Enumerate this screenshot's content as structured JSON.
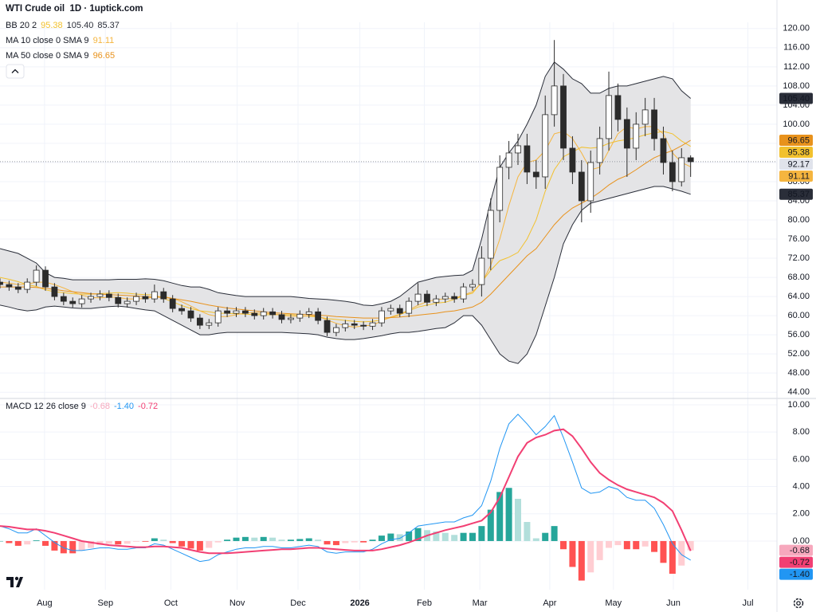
{
  "chart_data": [
    {
      "type": "candlestick",
      "title": "WTI Crude oil  1D · 1uptick.com",
      "ylim": [
        42.7,
        121.3
      ],
      "yticks": [
        {
          "value": 44,
          "label": "44.00"
        },
        {
          "value": 48,
          "label": "48.00"
        },
        {
          "value": 52,
          "label": "52.00"
        },
        {
          "value": 56,
          "label": "56.00"
        },
        {
          "value": 60,
          "label": "60.00"
        },
        {
          "value": 64,
          "label": "64.00"
        },
        {
          "value": 68,
          "label": "68.00"
        },
        {
          "value": 72,
          "label": "72.00"
        },
        {
          "value": 76,
          "label": "76.00"
        },
        {
          "value": 80,
          "label": "80.00"
        },
        {
          "value": 84,
          "label": "84.00"
        },
        {
          "value": 88,
          "label": "88.00"
        },
        {
          "value": 92,
          "label": "92.00"
        },
        {
          "value": 96,
          "label": "96.00"
        },
        {
          "value": 100,
          "label": "100.00"
        },
        {
          "value": 104,
          "label": "104.00"
        },
        {
          "value": 108,
          "label": "108.00"
        },
        {
          "value": 112,
          "label": "112.00"
        },
        {
          "value": 116,
          "label": "116.00"
        },
        {
          "value": 120,
          "label": "120.00"
        }
      ],
      "grid": true,
      "candle_colors": {
        "up": "#ffffff",
        "down": "#2b2b2b",
        "edge": "#2b2b2b"
      },
      "last_color": "#e0e3eb",
      "last_label": "92.17",
      "open": [
        67,
        66.5,
        66,
        65.5,
        67,
        69.5,
        66,
        64,
        63,
        62.5,
        63.5,
        64,
        64.5,
        63.8,
        62.5,
        63,
        64,
        63.5,
        65,
        63.5,
        61.5,
        61,
        59.5,
        58,
        58.5,
        61,
        60.5,
        61,
        60.5,
        60,
        60.8,
        60.2,
        59.2,
        59.5,
        60.3,
        60.8,
        59,
        56.5,
        57.5,
        58.3,
        58,
        57.8,
        58.5,
        61,
        61.5,
        60.5,
        63,
        64.5,
        62.8,
        63.5,
        64,
        63.5,
        66,
        66.5,
        72,
        82,
        91,
        94,
        95.5,
        90,
        89,
        102,
        108,
        95,
        90,
        84,
        92,
        97,
        106,
        101,
        95,
        100,
        103,
        97,
        92,
        88,
        93
      ],
      "high": [
        67.8,
        67.3,
        66.8,
        67.8,
        70.5,
        70.3,
        66.8,
        64.8,
        63.8,
        64.3,
        64.8,
        65.3,
        65.3,
        64.6,
        63.8,
        64.8,
        64.8,
        66.5,
        65.8,
        64.3,
        62.3,
        61.8,
        60.3,
        59.3,
        61.8,
        61.8,
        61.8,
        61.8,
        61.3,
        61.6,
        61.6,
        61,
        60.3,
        61.1,
        61.6,
        61.6,
        59.8,
        58.3,
        59.1,
        59.1,
        58.8,
        59.3,
        61.8,
        62.3,
        62.3,
        63.8,
        66.8,
        65.3,
        64.3,
        64.8,
        64.8,
        66.8,
        67.6,
        74.5,
        84.5,
        93.5,
        96.5,
        98,
        98,
        92.5,
        106,
        117.6,
        110.5,
        97.5,
        92.5,
        94.5,
        99.5,
        111,
        108.5,
        103.5,
        102.5,
        105.5,
        105.5,
        99.5,
        94.5,
        95,
        93.5
      ],
      "low": [
        65.7,
        65.2,
        64.7,
        64.7,
        66.2,
        65.2,
        63.2,
        62.2,
        61.7,
        61.7,
        62.7,
        63.2,
        63,
        61.7,
        61.7,
        62.2,
        62.7,
        62.7,
        62.7,
        60.7,
        60.2,
        58.7,
        57.2,
        57.2,
        57.7,
        59.7,
        59.7,
        59.7,
        59.2,
        59.2,
        59.4,
        58.4,
        58.4,
        58.7,
        59.5,
        58.2,
        55.7,
        55.7,
        56.7,
        57.2,
        57,
        57,
        57.7,
        60.2,
        59.7,
        59.7,
        62.2,
        62,
        62,
        62.7,
        62.7,
        62.7,
        65.2,
        64,
        69.5,
        79.5,
        88.5,
        91.5,
        87.5,
        86.5,
        86.5,
        99.5,
        92.5,
        87.5,
        79.5,
        81.5,
        89.5,
        94.5,
        98.5,
        89,
        92.5,
        97.5,
        94.5,
        89.5,
        86,
        87,
        89
      ],
      "close": [
        66.5,
        66,
        65.5,
        67,
        69.5,
        66,
        64,
        63,
        62.5,
        63.5,
        64,
        64.5,
        63.8,
        62.5,
        63,
        64,
        63.5,
        65,
        63.5,
        61.5,
        61,
        59.5,
        58,
        58.5,
        61,
        60.5,
        61,
        60.5,
        60,
        60.8,
        60.2,
        59.2,
        59.5,
        60.3,
        60.8,
        59,
        56.5,
        57.5,
        58.3,
        58,
        57.8,
        58.5,
        61,
        61.5,
        60.5,
        63,
        64.5,
        62.8,
        63.5,
        64,
        63.5,
        66,
        66.5,
        72,
        82,
        91,
        94,
        95.5,
        90,
        89,
        102,
        108,
        95,
        90,
        84,
        92,
        97,
        106,
        101,
        95,
        100,
        103,
        97,
        92,
        88,
        93,
        92.17
      ],
      "bb": {
        "label": "BB 20 2",
        "fill": "#e4e4e6",
        "basis": {
          "color": "#f2c12e",
          "last_label": "95.38",
          "values": [
            68,
            67.6,
            67.1,
            66.5,
            66.1,
            65.4,
            65,
            64.8,
            64.6,
            64.5,
            64.5,
            64.6,
            64.7,
            64.8,
            64.7,
            64.5,
            64.4,
            64.3,
            63.6,
            62.9,
            62.1,
            61.5,
            61,
            60.8,
            60.5,
            60.5,
            60.4,
            60.3,
            60.2,
            60.2,
            60.2,
            60.2,
            60.2,
            60,
            59.9,
            59.7,
            59.4,
            59.2,
            59,
            58.8,
            58.7,
            58.8,
            59.1,
            59.6,
            60.2,
            61,
            61.8,
            62.2,
            62.6,
            62.8,
            63.4,
            64.2,
            64.7,
            67,
            69.5,
            71.5,
            72.2,
            73.2,
            76,
            80,
            86,
            90.5,
            93.2,
            94.2,
            95.2,
            95,
            95.2,
            96,
            96.5,
            96.8,
            97.2,
            97.8,
            98.2,
            98.5,
            98,
            96.5,
            95.38
          ]
        },
        "upper": {
          "color": "#2a2e39",
          "last_label": "105.40",
          "values": [
            74,
            73.5,
            73,
            72,
            71,
            69,
            68,
            67.8,
            67.5,
            67.5,
            67.5,
            67.5,
            67.5,
            67.6,
            67.6,
            67.6,
            67.7,
            67.6,
            67.3,
            66.8,
            66.3,
            66,
            66,
            65.5,
            64.8,
            64.5,
            64.2,
            64,
            64,
            64,
            64,
            64,
            64,
            63.8,
            63.6,
            63.5,
            63.4,
            63.2,
            63,
            62.7,
            62.2,
            62.1,
            62.5,
            63,
            64,
            65.5,
            67,
            67.5,
            68,
            68.2,
            68.4,
            68.5,
            69.5,
            76,
            84,
            91,
            94,
            96.5,
            100,
            104,
            110,
            113,
            111.5,
            109.5,
            108.5,
            106.5,
            106.5,
            107.5,
            108,
            108,
            108.5,
            109,
            109.5,
            110,
            109.5,
            107,
            105.4
          ]
        },
        "lower": {
          "color": "#2a2e39",
          "last_label": "85.37",
          "values": [
            62.2,
            61.8,
            61.3,
            61,
            61.2,
            61.8,
            62,
            61.8,
            61.6,
            61.5,
            61.5,
            61.7,
            61.9,
            62,
            61.8,
            61.5,
            61.2,
            61,
            60,
            59,
            58,
            57,
            56,
            56,
            56.3,
            56.5,
            56.5,
            56.5,
            56.5,
            56.5,
            56.5,
            56.5,
            56.4,
            56.3,
            56.2,
            56,
            55.5,
            55.2,
            55,
            55,
            55.2,
            55.5,
            55.8,
            56.2,
            56.5,
            56.5,
            56.7,
            57,
            57.3,
            57.5,
            58.5,
            60,
            60,
            58,
            55,
            52,
            50.5,
            50,
            52,
            56,
            62,
            68,
            75,
            79,
            82,
            83.5,
            84,
            84.5,
            85,
            85.5,
            86,
            86.5,
            87,
            87,
            86.5,
            86,
            85.37
          ]
        }
      },
      "ma": [
        {
          "label": "MA 10 close 0 SMA 9",
          "color": "#f5b53f",
          "last_label": "91.11",
          "values": [
            67,
            66.8,
            66.5,
            66.6,
            67,
            67,
            66.5,
            65.8,
            65,
            64.3,
            63.8,
            63.7,
            63.9,
            63.8,
            63.5,
            63.5,
            63.6,
            63.9,
            64,
            63.6,
            62.9,
            62,
            61,
            60.2,
            59.8,
            59.8,
            60.2,
            60.6,
            60.6,
            60.5,
            60.4,
            60.1,
            59.9,
            59.8,
            60,
            59.9,
            59.1,
            58.4,
            57.9,
            57.6,
            57.9,
            58,
            58.9,
            59.7,
            60.3,
            61.2,
            62.2,
            62.9,
            63.4,
            63.5,
            63.6,
            64.3,
            65,
            66.8,
            70.5,
            76,
            83,
            89,
            92,
            92.5,
            94.5,
            98,
            98.5,
            97,
            94,
            90.5,
            91,
            94.5,
            98,
            99.5,
            99,
            99.5,
            99.5,
            98,
            94,
            92,
            91.11
          ]
        },
        {
          "label": "MA 50 close 0 SMA 9",
          "color": "#e8921c",
          "last_label": "96.65",
          "values": [
            66,
            66,
            66,
            66,
            65.9,
            65.7,
            65.5,
            65.2,
            65,
            64.8,
            64.6,
            64.5,
            64.4,
            64.3,
            64.2,
            64.1,
            64,
            63.9,
            63.8,
            63.6,
            63.3,
            63,
            62.6,
            62.2,
            61.9,
            61.6,
            61.4,
            61.2,
            61,
            60.8,
            60.6,
            60.5,
            60.4,
            60.3,
            60.2,
            60.1,
            60,
            59.8,
            59.7,
            59.6,
            59.5,
            59.5,
            59.5,
            59.6,
            59.7,
            59.9,
            60.1,
            60.3,
            60.5,
            60.8,
            61,
            61.4,
            61.8,
            62.8,
            64.5,
            66.5,
            68.5,
            70.5,
            72.5,
            74,
            76.5,
            79,
            81,
            82.5,
            83.5,
            84.5,
            85.8,
            87.3,
            88.5,
            89.3,
            90.5,
            91.8,
            93,
            93.8,
            94.5,
            95.5,
            96.65
          ]
        }
      ]
    },
    {
      "type": "macd",
      "label": "MACD 12 26 close 9",
      "xlim": [
        0,
        85.5
      ],
      "xticks": [
        {
          "value": 4.9,
          "label": "Aug"
        },
        {
          "value": 11.6,
          "label": "Sep"
        },
        {
          "value": 18.8,
          "label": "Oct"
        },
        {
          "value": 26.1,
          "label": "Nov"
        },
        {
          "value": 32.8,
          "label": "Dec"
        },
        {
          "value": 39.6,
          "label": "2026"
        },
        {
          "value": 46.7,
          "label": "Feb"
        },
        {
          "value": 52.8,
          "label": "Mar"
        },
        {
          "value": 60.5,
          "label": "Apr"
        },
        {
          "value": 67.5,
          "label": "May"
        },
        {
          "value": 74.1,
          "label": "Jun"
        },
        {
          "value": 82.3,
          "label": "Jul"
        }
      ],
      "ylim": [
        -3.57,
        10.29
      ],
      "yticks": [
        {
          "value": 0,
          "label": "0.00"
        },
        {
          "value": 2,
          "label": "2.00"
        },
        {
          "value": 4,
          "label": "4.00"
        },
        {
          "value": 6,
          "label": "6.00"
        },
        {
          "value": 8,
          "label": "8.00"
        },
        {
          "value": 10,
          "label": "10.00"
        }
      ],
      "grid": true,
      "histogram": {
        "last_label": "-0.68",
        "label_color": "#f7a8bd",
        "colors": {
          "up_rising": "#26a69a",
          "up_falling": "#b2dfdb",
          "down_falling": "#ff5252",
          "down_rising": "#ffcdd2"
        },
        "values": [
          0,
          -0.15,
          -0.35,
          -0.25,
          0.05,
          -0.35,
          -0.7,
          -0.9,
          -0.9,
          -0.7,
          -0.5,
          -0.3,
          -0.2,
          -0.25,
          -0.2,
          -0.05,
          -0.05,
          0.2,
          0.1,
          -0.15,
          -0.4,
          -0.55,
          -0.7,
          -0.5,
          -0.1,
          0.1,
          0.25,
          0.3,
          0.25,
          0.3,
          0.25,
          0.1,
          0.1,
          0.15,
          0.2,
          0.1,
          -0.25,
          -0.3,
          -0.15,
          -0.1,
          -0.1,
          0.1,
          0.4,
          0.55,
          0.5,
          0.7,
          0.95,
          0.8,
          0.7,
          0.6,
          0.45,
          0.6,
          0.6,
          1.1,
          2.3,
          3.6,
          3.9,
          3.1,
          1.4,
          0.2,
          0.6,
          1.1,
          -0.6,
          -1.9,
          -2.9,
          -2.3,
          -1.4,
          -0.5,
          -0.3,
          -0.6,
          -0.6,
          -0.4,
          -0.8,
          -1.6,
          -2.4,
          -1.8,
          -0.68
        ]
      },
      "macd": {
        "color": "#2196f3",
        "last_label": "-1.40",
        "values": [
          1.1,
          0.9,
          0.6,
          0.6,
          0.9,
          0.4,
          -0.1,
          -0.5,
          -0.7,
          -0.7,
          -0.6,
          -0.5,
          -0.5,
          -0.6,
          -0.6,
          -0.5,
          -0.5,
          -0.2,
          -0.3,
          -0.6,
          -0.9,
          -1.2,
          -1.5,
          -1.4,
          -1,
          -0.8,
          -0.6,
          -0.5,
          -0.5,
          -0.4,
          -0.4,
          -0.5,
          -0.5,
          -0.4,
          -0.3,
          -0.4,
          -0.8,
          -0.9,
          -0.8,
          -0.8,
          -0.8,
          -0.6,
          -0.2,
          0.1,
          0.2,
          0.6,
          1.1,
          1.2,
          1.3,
          1.4,
          1.4,
          1.7,
          1.9,
          2.6,
          4.4,
          6.8,
          8.6,
          9.3,
          8.6,
          7.8,
          8.4,
          9.2,
          7.6,
          5.8,
          3.9,
          3.5,
          3.6,
          4,
          3.8,
          3.2,
          3,
          3,
          2.4,
          1.2,
          -0.2,
          -1,
          -1.4
        ]
      },
      "signal": {
        "color": "#f23f73",
        "last_label": "-0.72",
        "values": [
          1.1,
          1.05,
          0.95,
          0.85,
          0.85,
          0.75,
          0.6,
          0.4,
          0.2,
          0,
          -0.1,
          -0.2,
          -0.3,
          -0.35,
          -0.4,
          -0.45,
          -0.45,
          -0.4,
          -0.4,
          -0.45,
          -0.5,
          -0.65,
          -0.8,
          -0.9,
          -0.9,
          -0.9,
          -0.85,
          -0.8,
          -0.75,
          -0.7,
          -0.65,
          -0.6,
          -0.6,
          -0.55,
          -0.5,
          -0.5,
          -0.55,
          -0.6,
          -0.65,
          -0.7,
          -0.7,
          -0.7,
          -0.6,
          -0.45,
          -0.3,
          -0.1,
          0.15,
          0.4,
          0.6,
          0.8,
          0.95,
          1.1,
          1.3,
          1.5,
          2.1,
          3.2,
          4.7,
          6.2,
          7.2,
          7.6,
          7.8,
          8.1,
          8.2,
          7.7,
          6.8,
          5.8,
          5,
          4.5,
          4.1,
          3.8,
          3.6,
          3.4,
          3.2,
          2.8,
          2.2,
          0.8,
          -0.72
        ]
      }
    }
  ]
}
